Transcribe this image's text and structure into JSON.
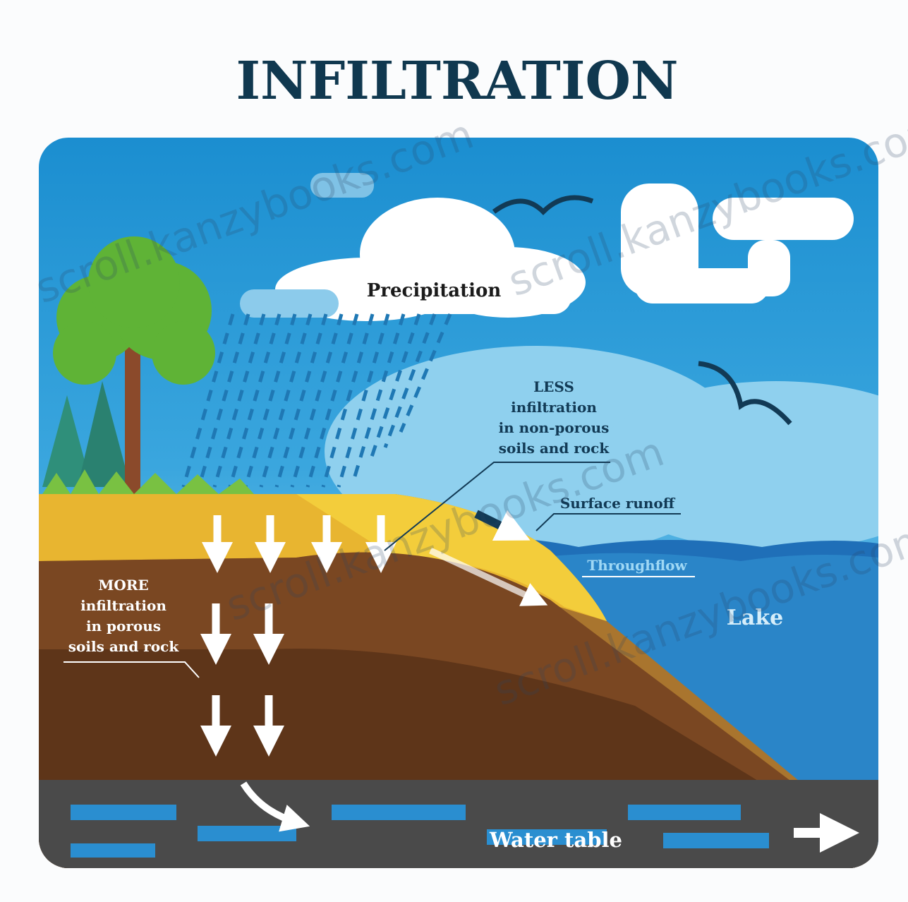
{
  "title": "INFILTRATION",
  "labels": {
    "precipitation": "Precipitation",
    "less_infiltration": [
      "LESS",
      "infiltration",
      "in non-porous",
      "soils and rock"
    ],
    "surface_runoff": "Surface runoff",
    "throughflow": "Throughflow",
    "lake": "Lake",
    "more_infiltration": [
      "MORE",
      "infiltration",
      "in porous",
      "soils and rock"
    ],
    "water_table": "Water table"
  },
  "watermark": "scroll.kanzybooks.com"
}
